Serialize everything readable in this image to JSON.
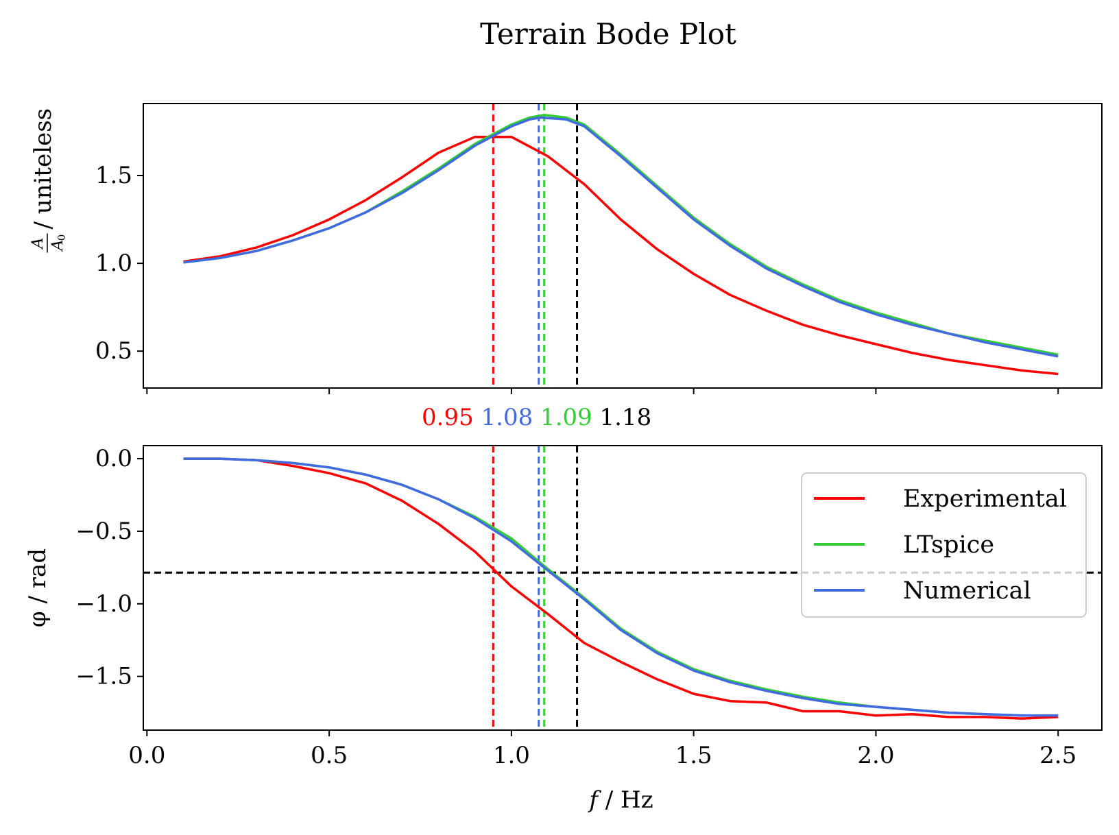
{
  "chart_data": {
    "type": "line",
    "title": "Terrain Bode Plot",
    "xlabel": "f / Hz",
    "xlim": [
      -0.01,
      2.62
    ],
    "xticks": [
      0.0,
      0.5,
      1.0,
      1.5,
      2.0,
      2.5
    ],
    "xtick_labels": [
      "0.0",
      "0.5",
      "1.0",
      "1.5",
      "2.0",
      "2.5"
    ],
    "legend_position": "center-right (lower panel)",
    "colors": {
      "Experimental": "#ff0000",
      "LTspice": "#32cd32",
      "Numerical": "#4169e1",
      "reference": "#000000"
    },
    "resonance_markers": [
      {
        "series": "Experimental",
        "x": 0.95,
        "label": "0.95",
        "color": "#ff0000"
      },
      {
        "series": "Numerical",
        "x": 1.075,
        "label": "1.08",
        "color": "#4169e1"
      },
      {
        "series": "LTspice",
        "x": 1.09,
        "label": "1.09",
        "color": "#32cd32"
      },
      {
        "series": null,
        "x": 1.18,
        "label": "1.18",
        "color": "#000000"
      }
    ],
    "panels": [
      {
        "id": "amplitude",
        "ylabel": "A/A0 / uniteless",
        "ylabel_parts": {
          "num": "A",
          "den": "A",
          "den_sub": "0",
          "rest": " / uniteless"
        },
        "ylim": [
          0.29,
          1.91
        ],
        "yticks": [
          0.5,
          1.0,
          1.5
        ],
        "ytick_labels": [
          "0.5",
          "1.0",
          "1.5"
        ],
        "hlines": [],
        "series": [
          {
            "name": "Experimental",
            "x": [
              0.1,
              0.2,
              0.3,
              0.4,
              0.5,
              0.6,
              0.7,
              0.8,
              0.9,
              0.95,
              1.0,
              1.1,
              1.2,
              1.3,
              1.4,
              1.5,
              1.6,
              1.7,
              1.8,
              1.9,
              2.0,
              2.1,
              2.2,
              2.3,
              2.4,
              2.5
            ],
            "values": [
              1.01,
              1.04,
              1.09,
              1.16,
              1.25,
              1.36,
              1.49,
              1.63,
              1.72,
              1.72,
              1.72,
              1.61,
              1.45,
              1.25,
              1.08,
              0.94,
              0.82,
              0.73,
              0.65,
              0.59,
              0.54,
              0.49,
              0.45,
              0.42,
              0.39,
              0.37
            ]
          },
          {
            "name": "LTspice",
            "x": [
              0.1,
              0.2,
              0.3,
              0.4,
              0.5,
              0.6,
              0.7,
              0.8,
              0.9,
              1.0,
              1.05,
              1.09,
              1.15,
              1.2,
              1.3,
              1.4,
              1.5,
              1.6,
              1.7,
              1.8,
              1.9,
              2.0,
              2.1,
              2.2,
              2.3,
              2.4,
              2.5
            ],
            "values": [
              1.005,
              1.03,
              1.07,
              1.13,
              1.2,
              1.29,
              1.41,
              1.54,
              1.68,
              1.79,
              1.83,
              1.845,
              1.83,
              1.79,
              1.62,
              1.44,
              1.26,
              1.11,
              0.98,
              0.88,
              0.79,
              0.72,
              0.66,
              0.6,
              0.56,
              0.52,
              0.48
            ]
          },
          {
            "name": "Numerical",
            "x": [
              0.1,
              0.2,
              0.3,
              0.4,
              0.5,
              0.6,
              0.7,
              0.8,
              0.9,
              1.0,
              1.05,
              1.08,
              1.15,
              1.2,
              1.3,
              1.4,
              1.5,
              1.6,
              1.7,
              1.8,
              1.9,
              2.0,
              2.1,
              2.2,
              2.3,
              2.4,
              2.5
            ],
            "values": [
              1.005,
              1.03,
              1.07,
              1.13,
              1.2,
              1.29,
              1.4,
              1.53,
              1.67,
              1.78,
              1.82,
              1.83,
              1.82,
              1.78,
              1.61,
              1.43,
              1.25,
              1.1,
              0.97,
              0.87,
              0.78,
              0.71,
              0.65,
              0.6,
              0.55,
              0.51,
              0.47
            ]
          }
        ]
      },
      {
        "id": "phase",
        "ylabel": "φ / rad",
        "ylim": [
          -1.87,
          0.09
        ],
        "yticks": [
          0.0,
          -0.5,
          -1.0,
          -1.5
        ],
        "ytick_labels": [
          "0.0",
          "−0.5",
          "−1.0",
          "−1.5"
        ],
        "hlines": [
          -0.785
        ],
        "series": [
          {
            "name": "Experimental",
            "x": [
              0.1,
              0.2,
              0.3,
              0.4,
              0.5,
              0.6,
              0.7,
              0.8,
              0.9,
              1.0,
              1.1,
              1.2,
              1.3,
              1.4,
              1.5,
              1.6,
              1.7,
              1.8,
              1.9,
              2.0,
              2.1,
              2.2,
              2.3,
              2.4,
              2.5
            ],
            "values": [
              0.0,
              0.0,
              -0.01,
              -0.05,
              -0.1,
              -0.17,
              -0.29,
              -0.45,
              -0.64,
              -0.88,
              -1.07,
              -1.27,
              -1.4,
              -1.52,
              -1.62,
              -1.67,
              -1.68,
              -1.74,
              -1.74,
              -1.77,
              -1.76,
              -1.78,
              -1.78,
              -1.79,
              -1.78
            ]
          },
          {
            "name": "LTspice",
            "x": [
              0.1,
              0.2,
              0.3,
              0.4,
              0.5,
              0.6,
              0.7,
              0.8,
              0.9,
              1.0,
              1.1,
              1.2,
              1.3,
              1.4,
              1.5,
              1.6,
              1.7,
              1.8,
              1.9,
              2.0,
              2.1,
              2.2,
              2.3,
              2.4,
              2.5
            ],
            "values": [
              0.0,
              0.0,
              -0.01,
              -0.03,
              -0.06,
              -0.11,
              -0.18,
              -0.28,
              -0.4,
              -0.55,
              -0.76,
              -0.96,
              -1.17,
              -1.33,
              -1.45,
              -1.53,
              -1.59,
              -1.64,
              -1.68,
              -1.71,
              -1.73,
              -1.75,
              -1.76,
              -1.77,
              -1.77
            ]
          },
          {
            "name": "Numerical",
            "x": [
              0.1,
              0.2,
              0.3,
              0.4,
              0.5,
              0.6,
              0.7,
              0.8,
              0.9,
              1.0,
              1.1,
              1.2,
              1.3,
              1.4,
              1.5,
              1.6,
              1.7,
              1.8,
              1.9,
              2.0,
              2.1,
              2.2,
              2.3,
              2.4,
              2.5
            ],
            "values": [
              0.0,
              0.0,
              -0.01,
              -0.03,
              -0.06,
              -0.11,
              -0.18,
              -0.28,
              -0.41,
              -0.57,
              -0.77,
              -0.97,
              -1.18,
              -1.34,
              -1.46,
              -1.54,
              -1.6,
              -1.65,
              -1.69,
              -1.71,
              -1.73,
              -1.75,
              -1.76,
              -1.77,
              -1.77
            ]
          }
        ]
      }
    ],
    "legend": [
      "Experimental",
      "LTspice",
      "Numerical"
    ]
  }
}
